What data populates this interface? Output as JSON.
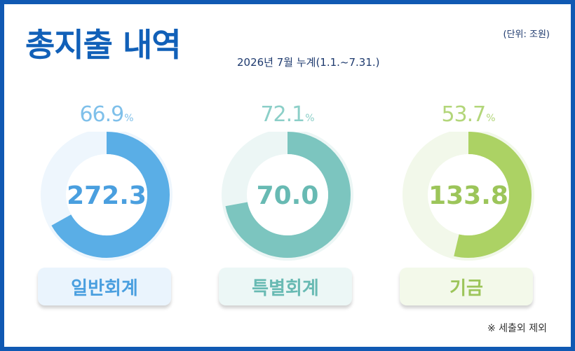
{
  "header": {
    "title": "총지출 내역",
    "period": "2026년 7월 누계(1.1.~7.31.)",
    "unit": "(단위: 조원)"
  },
  "note": "※ 세출외 제외",
  "chart_data": {
    "type": "pie",
    "subtype": "donut",
    "percent_symbol": "%",
    "items": [
      {
        "category": "일반회계",
        "value": 272.3,
        "percent": 66.9,
        "percent_label": "66.9",
        "value_label": "272.3",
        "color": "#5aaee6",
        "text_color": "#7fc0ea",
        "track_color": "#eef6fd",
        "label_bg": "#eaf4fd",
        "label_color": "#4a9fdf"
      },
      {
        "category": "특별회계",
        "value": 70.0,
        "percent": 72.1,
        "percent_label": "72.1",
        "value_label": "70.0",
        "color": "#7cc5bf",
        "text_color": "#8ccfc8",
        "track_color": "#ecf6f5",
        "label_bg": "#ecf7f6",
        "label_color": "#68bab3"
      },
      {
        "category": "기금",
        "value": 133.8,
        "percent": 53.7,
        "percent_label": "53.7",
        "value_label": "133.8",
        "color": "#acd264",
        "text_color": "#b3d67a",
        "track_color": "#f2f8ea",
        "label_bg": "#f3f9ea",
        "label_color": "#9cc55a"
      }
    ]
  }
}
